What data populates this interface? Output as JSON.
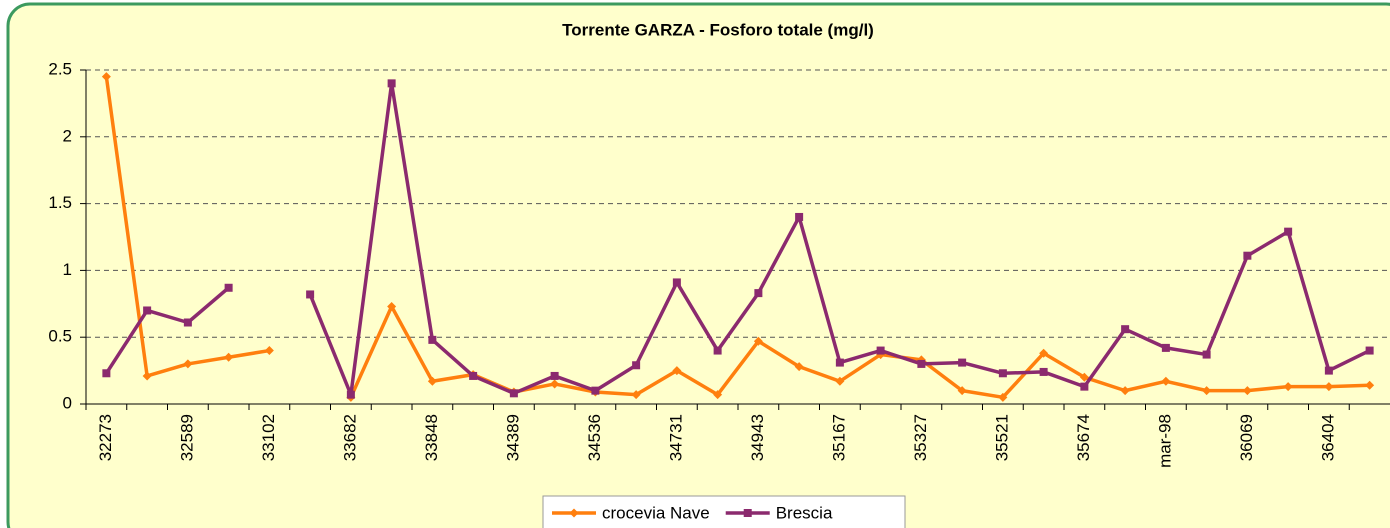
{
  "chart_data": {
    "type": "line",
    "title": "Torrente GARZA - Fosforo totale (mg/l)",
    "categories": [
      "32273",
      null,
      "32589",
      null,
      "33102",
      null,
      "33682",
      null,
      "33848",
      null,
      "34389",
      null,
      "34536",
      null,
      "34731",
      null,
      "34943",
      null,
      "35167",
      null,
      "35327",
      null,
      "35521",
      null,
      "35674",
      null,
      "mar-98",
      null,
      "36069",
      null,
      "36404",
      null
    ],
    "series": [
      {
        "name": "crocevia Nave",
        "color": "#ff7f0e",
        "marker": "diamond",
        "values": [
          2.45,
          0.21,
          0.3,
          0.35,
          0.4,
          null,
          0.05,
          0.73,
          0.17,
          0.22,
          0.09,
          0.15,
          0.09,
          0.07,
          0.25,
          0.07,
          0.47,
          0.28,
          0.17,
          0.37,
          0.33,
          0.1,
          0.05,
          0.38,
          0.2,
          0.1,
          0.17,
          0.1,
          0.1,
          0.13,
          0.13,
          0.14
        ]
      },
      {
        "name": "Brescia",
        "color": "#8b2a6e",
        "marker": "square",
        "values": [
          0.23,
          0.7,
          0.61,
          0.87,
          null,
          0.82,
          0.07,
          2.4,
          0.48,
          0.21,
          0.08,
          0.21,
          0.1,
          0.29,
          0.91,
          0.4,
          0.83,
          1.4,
          0.31,
          0.4,
          0.3,
          0.31,
          0.23,
          0.24,
          0.13,
          0.56,
          0.42,
          0.37,
          1.11,
          1.29,
          0.25,
          0.4
        ]
      }
    ],
    "ylim": [
      0,
      2.5
    ],
    "yticks": [
      0,
      0.5,
      1,
      1.5,
      2,
      2.5
    ],
    "grid": true,
    "legend": "bottom"
  }
}
